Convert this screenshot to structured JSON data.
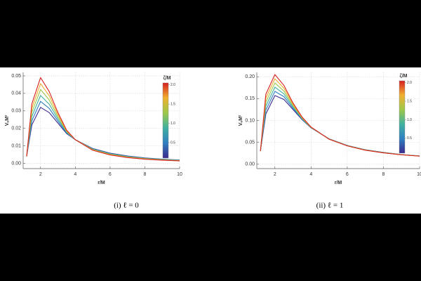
{
  "chart_data": [
    {
      "type": "line",
      "caption": "(i) ℓ = 0",
      "xlabel": "r/M",
      "ylabel": "VₑM²",
      "x": [
        1.2,
        1.5,
        2,
        2.5,
        3,
        3.5,
        4,
        5,
        6,
        7,
        8,
        9,
        10
      ],
      "series": [
        {
          "color": "#3a2a8f",
          "values": [
            0.004,
            0.022,
            0.032,
            0.029,
            0.023,
            0.017,
            0.0135,
            0.0085,
            0.0058,
            0.0042,
            0.0031,
            0.0024,
            0.0019
          ]
        },
        {
          "color": "#2f7fc0",
          "values": [
            0.004,
            0.0244,
            0.0354,
            0.0314,
            0.0242,
            0.0174,
            0.0135,
            0.0083,
            0.0056,
            0.00402,
            0.00296,
            0.00228,
            0.0018
          ]
        },
        {
          "color": "#3fb0a0",
          "values": [
            0.004,
            0.0268,
            0.0388,
            0.0338,
            0.0254,
            0.0178,
            0.0135,
            0.0081,
            0.0054,
            0.00384,
            0.00282,
            0.00216,
            0.0017
          ]
        },
        {
          "color": "#9cc84a",
          "values": [
            0.004,
            0.0292,
            0.0422,
            0.0362,
            0.0266,
            0.0182,
            0.0135,
            0.0079,
            0.0052,
            0.00366,
            0.00268,
            0.00204,
            0.0016
          ]
        },
        {
          "color": "#f0b030",
          "values": [
            0.004,
            0.0316,
            0.0456,
            0.0386,
            0.0278,
            0.0186,
            0.0135,
            0.0077,
            0.005,
            0.00348,
            0.00254,
            0.00192,
            0.0015
          ]
        },
        {
          "color": "#d62020",
          "values": [
            0.004,
            0.034,
            0.049,
            0.041,
            0.029,
            0.019,
            0.0135,
            0.0075,
            0.0048,
            0.0033,
            0.0024,
            0.0018,
            0.0014
          ]
        }
      ],
      "xlim": [
        1,
        10
      ],
      "ylim": [
        -0.003,
        0.052
      ],
      "xticks": [
        2,
        4,
        6,
        8,
        10
      ],
      "yticks": [
        {
          "value": 0,
          "label": "0.00"
        },
        {
          "value": 0.01,
          "label": "0.01"
        },
        {
          "value": 0.02,
          "label": "0.02"
        },
        {
          "value": 0.03,
          "label": "0.03"
        },
        {
          "value": 0.04,
          "label": "0.04"
        },
        {
          "value": 0.05,
          "label": "0.05"
        }
      ],
      "grid": true,
      "colorbar": {
        "title": "ζ/M",
        "lim": [
          0.1,
          2.05
        ],
        "ticks": [
          0.5,
          {
            "value": 1,
            "label": "1.0"
          },
          1.5,
          {
            "value": 2,
            "label": "2.0"
          }
        ]
      }
    },
    {
      "type": "line",
      "caption": "(ii) ℓ = 1",
      "xlabel": "r/M",
      "ylabel": "VₑM²",
      "x": [
        1.2,
        1.5,
        2,
        2.5,
        3,
        3.5,
        4,
        5,
        6,
        7,
        8,
        9,
        10
      ],
      "series": [
        {
          "color": "#3a2a8f",
          "values": [
            0.03,
            0.115,
            0.157,
            0.148,
            0.125,
            0.102,
            0.083,
            0.058,
            0.043,
            0.033,
            0.027,
            0.022,
            0.019
          ]
        },
        {
          "color": "#2f7fc0",
          "values": [
            0.03,
            0.124,
            0.1666,
            0.1544,
            0.128,
            0.1032,
            0.0834,
            0.0578,
            0.0428,
            0.0328,
            0.0268,
            0.0219,
            0.0189
          ]
        },
        {
          "color": "#3fb0a0",
          "values": [
            0.03,
            0.133,
            0.1762,
            0.1608,
            0.131,
            0.1044,
            0.0838,
            0.0576,
            0.0426,
            0.0326,
            0.0266,
            0.0218,
            0.0188
          ]
        },
        {
          "color": "#9cc84a",
          "values": [
            0.03,
            0.142,
            0.1858,
            0.1672,
            0.134,
            0.1056,
            0.0842,
            0.0574,
            0.0424,
            0.0324,
            0.0264,
            0.0217,
            0.0187
          ]
        },
        {
          "color": "#f0b030",
          "values": [
            0.03,
            0.151,
            0.1954,
            0.1736,
            0.137,
            0.1068,
            0.0846,
            0.0572,
            0.0422,
            0.0322,
            0.0262,
            0.0216,
            0.0186
          ]
        },
        {
          "color": "#d62020",
          "values": [
            0.03,
            0.16,
            0.205,
            0.18,
            0.14,
            0.108,
            0.085,
            0.057,
            0.042,
            0.032,
            0.026,
            0.0215,
            0.0185
          ]
        }
      ],
      "xlim": [
        1,
        10
      ],
      "ylim": [
        -0.01,
        0.21
      ],
      "xticks": [
        2,
        4,
        6,
        8,
        10
      ],
      "yticks": [
        {
          "value": 0,
          "label": "0.00"
        },
        {
          "value": 0.05,
          "label": "0.05"
        },
        {
          "value": 0.1,
          "label": "0.10"
        },
        {
          "value": 0.15,
          "label": "0.15"
        },
        {
          "value": 0.2,
          "label": "0.20"
        }
      ],
      "grid": true,
      "colorbar": {
        "title": "ζ/M",
        "lim": [
          0.1,
          2.05
        ],
        "ticks": [
          0.5,
          {
            "value": 1,
            "label": "1.0"
          },
          1.5,
          {
            "value": 2,
            "label": "2.0"
          }
        ]
      }
    }
  ]
}
